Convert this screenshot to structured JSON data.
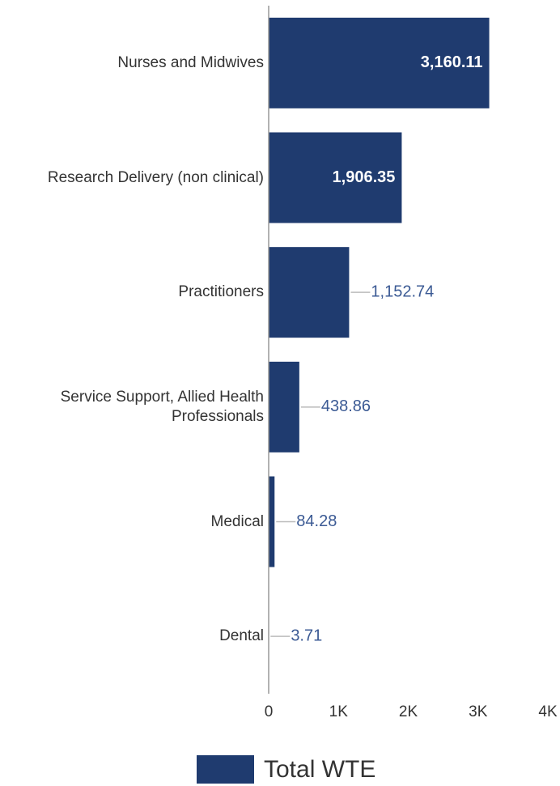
{
  "chart_data": {
    "type": "bar",
    "orientation": "horizontal",
    "categories": [
      "Nurses and Midwives",
      "Research Delivery (non clinical)",
      "Practitioners",
      "Service Support, Allied Health Professionals",
      "Medical",
      "Dental"
    ],
    "series": [
      {
        "name": "Total WTE",
        "color": "#1f3b6f",
        "values": [
          3160.11,
          1906.35,
          1152.74,
          438.86,
          84.28,
          3.71
        ],
        "value_labels": [
          "3,160.11",
          "1,906.35",
          "1,152.74",
          "438.86",
          "84.28",
          "3.71"
        ]
      }
    ],
    "xlim": [
      0,
      4000
    ],
    "xticks": [
      {
        "value": 0,
        "label": "0"
      },
      {
        "value": 1000,
        "label": "1K"
      },
      {
        "value": 2000,
        "label": "2K"
      },
      {
        "value": 3000,
        "label": "3K"
      },
      {
        "value": 4000,
        "label": "4K"
      }
    ],
    "legend": "bottom"
  }
}
